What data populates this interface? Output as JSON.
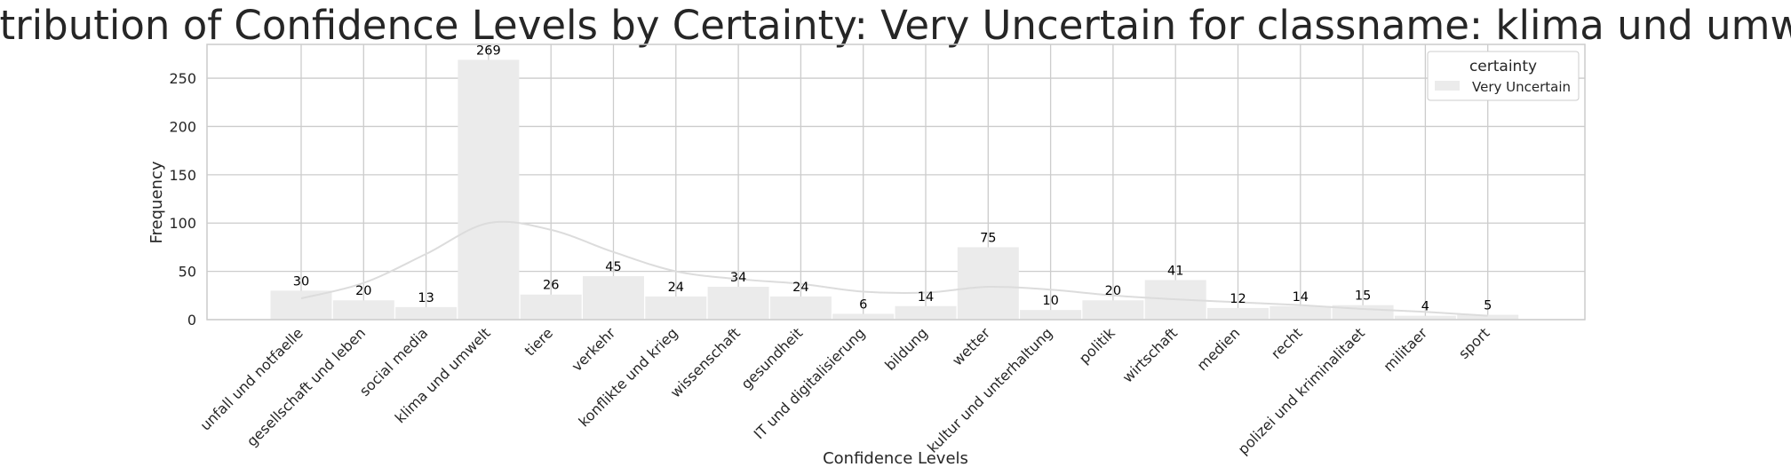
{
  "chart_data": {
    "type": "bar",
    "title": "Distribution of Confidence Levels by Certainty: Very Uncertain for classname: klima und umwelt",
    "xlabel": "Confidence Levels",
    "ylabel": "Frequency",
    "ylim": [
      0,
      285
    ],
    "yticks": [
      0,
      50,
      100,
      150,
      200,
      250
    ],
    "grid": true,
    "legend": {
      "title": "certainty",
      "position": "top-right",
      "entries": [
        "Very Uncertain"
      ]
    },
    "categories": [
      "unfall und notfaelle",
      "gesellschaft und leben",
      "social media",
      "klima und umwelt",
      "tiere",
      "verkehr",
      "konflikte und krieg",
      "wissenschaft",
      "gesundheit",
      "IT und digitalisierung",
      "bildung",
      "wetter",
      "kultur und unterhaltung",
      "politik",
      "wirtschaft",
      "medien",
      "recht",
      "polizei und kriminalitaet",
      "militaer",
      "sport"
    ],
    "series": [
      {
        "name": "Very Uncertain",
        "values": [
          30,
          20,
          13,
          269,
          26,
          45,
          24,
          34,
          24,
          6,
          14,
          75,
          10,
          20,
          41,
          12,
          14,
          15,
          4,
          5
        ]
      }
    ],
    "kde": {
      "type": "density-curve",
      "values": [
        22,
        38,
        68,
        100,
        93,
        70,
        50,
        42,
        37,
        29,
        28,
        34,
        31,
        25,
        21,
        18,
        15,
        11,
        8,
        4
      ]
    },
    "colors": {
      "bar": "#ebebeb",
      "kde": "#dcdcdc",
      "grid": "#cccccc",
      "text": "#262626"
    }
  }
}
